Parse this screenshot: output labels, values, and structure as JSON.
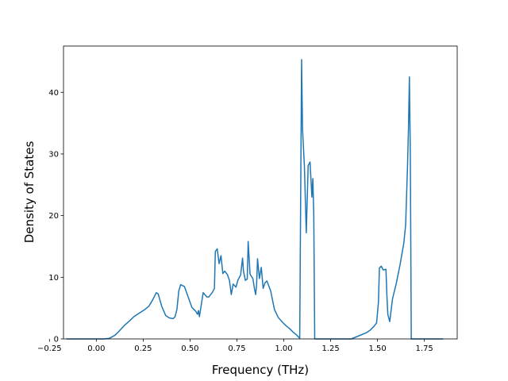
{
  "chart_data": {
    "type": "line",
    "title": "",
    "xlabel": "Frequency (THz)",
    "ylabel": "Density of States",
    "xlim": [
      -0.175,
      1.925
    ],
    "ylim": [
      0,
      47.5
    ],
    "xticks": [
      -0.25,
      0.0,
      0.25,
      0.5,
      0.75,
      1.0,
      1.25,
      1.5,
      1.75
    ],
    "xtick_labels": [
      "−0.25",
      "0.00",
      "0.25",
      "0.50",
      "0.75",
      "1.00",
      "1.25",
      "1.50",
      "1.75"
    ],
    "yticks": [
      0,
      10,
      20,
      30,
      40
    ],
    "ytick_labels": [
      "0",
      "10",
      "20",
      "30",
      "40"
    ],
    "grid": false,
    "legend": "none",
    "line_color": "#1f77b4",
    "series": [
      {
        "x": [
          -0.16,
          0.0,
          0.04,
          0.07,
          0.1,
          0.12,
          0.15,
          0.18,
          0.2,
          0.23,
          0.26,
          0.28,
          0.3,
          0.32,
          0.33,
          0.35,
          0.37,
          0.39,
          0.41,
          0.42,
          0.43,
          0.44,
          0.45,
          0.47,
          0.49,
          0.51,
          0.52,
          0.53,
          0.54,
          0.545,
          0.55,
          0.57,
          0.59,
          0.6,
          0.61,
          0.62,
          0.63,
          0.635,
          0.645,
          0.655,
          0.665,
          0.675,
          0.685,
          0.7,
          0.71,
          0.72,
          0.73,
          0.745,
          0.755,
          0.77,
          0.78,
          0.785,
          0.795,
          0.805,
          0.81,
          0.82,
          0.835,
          0.845,
          0.85,
          0.855,
          0.86,
          0.87,
          0.88,
          0.89,
          0.9,
          0.91,
          0.93,
          0.95,
          0.97,
          0.99,
          1.01,
          1.03,
          1.05,
          1.07,
          1.085,
          1.095,
          1.1,
          1.11,
          1.12,
          1.13,
          1.14,
          1.15,
          1.155,
          1.16,
          1.165,
          1.175,
          1.185,
          1.27,
          1.36,
          1.4,
          1.44,
          1.46,
          1.48,
          1.495,
          1.505,
          1.51,
          1.52,
          1.53,
          1.545,
          1.55,
          1.555,
          1.565,
          1.58,
          1.6,
          1.62,
          1.64,
          1.65,
          1.66,
          1.665,
          1.67,
          1.675,
          1.68,
          1.685,
          1.69,
          1.8,
          1.85
        ],
        "y": [
          0,
          0,
          0,
          0.1,
          0.6,
          1.2,
          2.2,
          3.0,
          3.6,
          4.2,
          4.8,
          5.3,
          6.3,
          7.5,
          7.3,
          5.2,
          3.8,
          3.4,
          3.3,
          3.6,
          4.8,
          7.8,
          8.8,
          8.5,
          6.8,
          5.1,
          4.8,
          4.5,
          4.0,
          4.6,
          3.6,
          7.5,
          6.8,
          6.8,
          7.2,
          7.6,
          8.2,
          14.2,
          14.6,
          12.2,
          13.5,
          10.6,
          11.0,
          10.4,
          9.5,
          7.2,
          8.9,
          8.4,
          9.5,
          10.4,
          13.1,
          11.0,
          9.5,
          9.7,
          15.8,
          10.5,
          9.8,
          7.9,
          7.2,
          8.8,
          13.0,
          9.8,
          11.6,
          8.2,
          9.1,
          9.4,
          7.8,
          4.8,
          3.5,
          2.8,
          2.2,
          1.7,
          1.1,
          0.6,
          0.1,
          45.3,
          34.0,
          28.0,
          17.2,
          28.1,
          28.7,
          23.0,
          26.0,
          20.0,
          0,
          0,
          0,
          0,
          0,
          0.5,
          1.0,
          1.4,
          2.0,
          2.6,
          6.0,
          11.5,
          11.8,
          11.2,
          11.3,
          7.0,
          4.0,
          2.8,
          6.5,
          9.0,
          12.0,
          15.5,
          18.5,
          28.0,
          34.0,
          42.5,
          30.0,
          0,
          0,
          0,
          0,
          0
        ]
      }
    ]
  }
}
